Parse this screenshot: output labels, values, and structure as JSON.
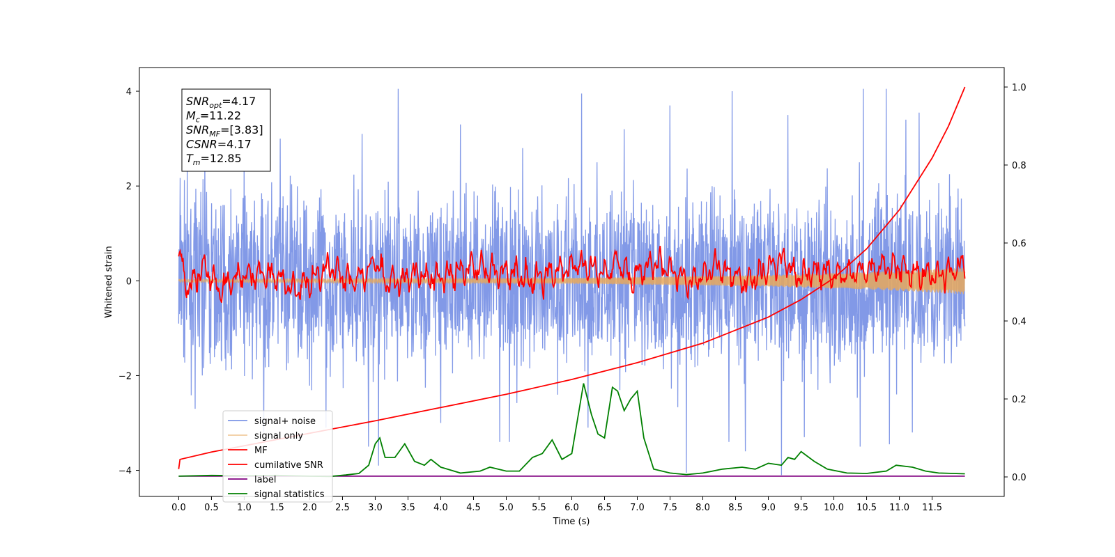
{
  "chart_data": {
    "type": "line",
    "title": "",
    "xlabel": "Time (s)",
    "ylabel": "Whitened strain",
    "xlim": [
      -0.6,
      12.6
    ],
    "ylim": [
      -4.55,
      4.5
    ],
    "y2lim": [
      -0.05,
      1.05
    ],
    "x_ticks": [
      0.0,
      0.5,
      1.0,
      1.5,
      2.0,
      2.5,
      3.0,
      3.5,
      4.0,
      4.5,
      5.0,
      5.5,
      6.0,
      6.5,
      7.0,
      7.5,
      8.0,
      8.5,
      9.0,
      9.5,
      10.0,
      10.5,
      11.0,
      11.5
    ],
    "x_tick_labels": [
      "0.0",
      "0.5",
      "1.0",
      "1.5",
      "2.0",
      "2.5",
      "3.0",
      "3.5",
      "4.0",
      "4.5",
      "5.0",
      "5.5",
      "6.0",
      "6.5",
      "7.0",
      "7.5",
      "8.0",
      "8.5",
      "9.0",
      "9.5",
      "10.0",
      "10.5",
      "11.0",
      "11.5"
    ],
    "y_ticks": [
      -4,
      -2,
      0,
      2,
      4
    ],
    "y_tick_labels": [
      "−4",
      "−2",
      "0",
      "2",
      "4"
    ],
    "y2_ticks": [
      0.0,
      0.2,
      0.4,
      0.6,
      0.8,
      1.0
    ],
    "y2_tick_labels": [
      "0.0",
      "0.2",
      "0.4",
      "0.6",
      "0.8",
      "1.0"
    ],
    "grid": false,
    "legend_position": "lower-left",
    "annotation": {
      "lines": [
        {
          "base": "SNR",
          "sub": "opt",
          "value": "=4.17"
        },
        {
          "base": "M",
          "sub": "c",
          "value": "=11.22"
        },
        {
          "base": "SNR",
          "sub": "MF",
          "value": "=[3.83]"
        },
        {
          "base": "CSNR",
          "sub": "",
          "value": "=4.17"
        },
        {
          "base": "T",
          "sub": "m",
          "value": "=12.85"
        }
      ]
    },
    "series": [
      {
        "name": "signal+ noise",
        "color": "#7b94e6",
        "axis": "left",
        "x_range": [
          0.0,
          12.0
        ],
        "envelope": {
          "typical_upper": 2.0,
          "typical_lower": -2.2,
          "max": 4.05,
          "min": -4.1
        },
        "peaks_upper": [
          [
            0.4,
            2.7
          ],
          [
            1.0,
            2.9
          ],
          [
            1.55,
            3.0
          ],
          [
            2.8,
            3.1
          ],
          [
            3.35,
            4.05
          ],
          [
            4.3,
            3.3
          ],
          [
            5.25,
            2.8
          ],
          [
            6.15,
            3.95
          ],
          [
            6.8,
            3.2
          ],
          [
            7.5,
            3.7
          ],
          [
            8.45,
            4.0
          ],
          [
            9.3,
            3.5
          ],
          [
            10.45,
            4.05
          ],
          [
            10.8,
            4.05
          ],
          [
            11.1,
            3.4
          ],
          [
            11.3,
            3.55
          ]
        ],
        "peaks_lower": [
          [
            0.25,
            -2.7
          ],
          [
            1.3,
            -3.2
          ],
          [
            2.25,
            -3.1
          ],
          [
            2.9,
            -3.5
          ],
          [
            3.05,
            -3.9
          ],
          [
            4.0,
            -3.0
          ],
          [
            4.9,
            -3.4
          ],
          [
            5.05,
            -3.4
          ],
          [
            6.25,
            -3.1
          ],
          [
            7.75,
            -4.05
          ],
          [
            8.4,
            -3.4
          ],
          [
            8.65,
            -3.6
          ],
          [
            9.2,
            -4.1
          ],
          [
            9.55,
            -3.3
          ],
          [
            10.4,
            -3.5
          ],
          [
            10.85,
            -3.45
          ],
          [
            11.2,
            -3.2
          ]
        ]
      },
      {
        "name": "signal only",
        "color": "#e8a85c",
        "axis": "left",
        "x_range": [
          0.0,
          12.0
        ],
        "amplitude": [
          [
            0.0,
            0.03
          ],
          [
            6.0,
            0.06
          ],
          [
            9.0,
            0.12
          ],
          [
            10.5,
            0.18
          ],
          [
            12.0,
            0.28
          ]
        ]
      },
      {
        "name": "MF",
        "color": "#ff0000",
        "axis": "left",
        "x_range": [
          0.0,
          12.0
        ],
        "points": [
          [
            0.0,
            0.8
          ],
          [
            0.02,
            1.0
          ],
          [
            0.08,
            0.4
          ],
          [
            0.15,
            -0.3
          ],
          [
            0.25,
            0.2
          ],
          [
            0.4,
            0.6
          ],
          [
            0.6,
            -0.2
          ],
          [
            1.0,
            0.3
          ],
          [
            1.4,
            0.4
          ],
          [
            1.8,
            -0.3
          ],
          [
            2.3,
            0.6
          ],
          [
            2.6,
            0.1
          ],
          [
            2.8,
            0.2
          ],
          [
            3.0,
            0.8
          ],
          [
            3.2,
            0.0
          ],
          [
            3.6,
            0.3
          ],
          [
            4.0,
            0.2
          ],
          [
            4.5,
            0.6
          ],
          [
            5.0,
            0.4
          ],
          [
            5.4,
            0.1
          ],
          [
            5.8,
            0.5
          ],
          [
            6.2,
            0.7
          ],
          [
            6.5,
            0.4
          ],
          [
            6.7,
            0.9
          ],
          [
            6.9,
            0.2
          ],
          [
            7.3,
            0.8
          ],
          [
            7.8,
            0.0
          ],
          [
            8.2,
            0.7
          ],
          [
            8.7,
            0.0
          ],
          [
            9.0,
            0.6
          ],
          [
            9.25,
            0.9
          ],
          [
            9.4,
            0.3
          ],
          [
            9.8,
            0.4
          ],
          [
            10.2,
            0.3
          ],
          [
            10.8,
            0.7
          ],
          [
            11.2,
            0.4
          ],
          [
            11.5,
            0.3
          ],
          [
            11.8,
            0.4
          ],
          [
            12.0,
            0.8
          ]
        ]
      },
      {
        "name": "cumilative SNR",
        "color": "#ff0000",
        "axis": "right",
        "points": [
          [
            0.0,
            0.02
          ],
          [
            0.02,
            0.045
          ],
          [
            0.5,
            0.064
          ],
          [
            1.0,
            0.08
          ],
          [
            2.0,
            0.112
          ],
          [
            3.0,
            0.144
          ],
          [
            4.0,
            0.178
          ],
          [
            5.0,
            0.212
          ],
          [
            6.0,
            0.25
          ],
          [
            7.0,
            0.293
          ],
          [
            8.0,
            0.343
          ],
          [
            9.0,
            0.41
          ],
          [
            9.5,
            0.455
          ],
          [
            10.0,
            0.51
          ],
          [
            10.5,
            0.585
          ],
          [
            11.0,
            0.685
          ],
          [
            11.5,
            0.818
          ],
          [
            11.75,
            0.9
          ],
          [
            12.0,
            1.0
          ]
        ]
      },
      {
        "name": "label",
        "color": "#800080",
        "axis": "right",
        "points": [
          [
            0.0,
            0.002
          ],
          [
            12.0,
            0.002
          ]
        ]
      },
      {
        "name": "signal statistics",
        "color": "#008000",
        "axis": "right",
        "points": [
          [
            0.0,
            0.002
          ],
          [
            0.5,
            0.004
          ],
          [
            1.0,
            0.003
          ],
          [
            1.5,
            0.004
          ],
          [
            2.0,
            0.002
          ],
          [
            2.3,
            0.001
          ],
          [
            2.55,
            0.005
          ],
          [
            2.75,
            0.009
          ],
          [
            2.9,
            0.03
          ],
          [
            3.0,
            0.085
          ],
          [
            3.07,
            0.1
          ],
          [
            3.15,
            0.05
          ],
          [
            3.3,
            0.05
          ],
          [
            3.45,
            0.085
          ],
          [
            3.6,
            0.04
          ],
          [
            3.75,
            0.03
          ],
          [
            3.85,
            0.045
          ],
          [
            4.0,
            0.025
          ],
          [
            4.3,
            0.01
          ],
          [
            4.6,
            0.015
          ],
          [
            4.75,
            0.025
          ],
          [
            5.0,
            0.015
          ],
          [
            5.2,
            0.015
          ],
          [
            5.4,
            0.05
          ],
          [
            5.55,
            0.06
          ],
          [
            5.7,
            0.095
          ],
          [
            5.85,
            0.045
          ],
          [
            6.0,
            0.06
          ],
          [
            6.1,
            0.16
          ],
          [
            6.18,
            0.24
          ],
          [
            6.3,
            0.16
          ],
          [
            6.4,
            0.11
          ],
          [
            6.5,
            0.1
          ],
          [
            6.62,
            0.23
          ],
          [
            6.7,
            0.22
          ],
          [
            6.8,
            0.17
          ],
          [
            6.9,
            0.2
          ],
          [
            7.0,
            0.22
          ],
          [
            7.1,
            0.1
          ],
          [
            7.25,
            0.02
          ],
          [
            7.5,
            0.01
          ],
          [
            7.75,
            0.006
          ],
          [
            8.0,
            0.01
          ],
          [
            8.3,
            0.02
          ],
          [
            8.6,
            0.025
          ],
          [
            8.8,
            0.02
          ],
          [
            9.0,
            0.035
          ],
          [
            9.2,
            0.03
          ],
          [
            9.3,
            0.05
          ],
          [
            9.4,
            0.045
          ],
          [
            9.5,
            0.065
          ],
          [
            9.7,
            0.04
          ],
          [
            9.9,
            0.02
          ],
          [
            10.2,
            0.01
          ],
          [
            10.5,
            0.009
          ],
          [
            10.8,
            0.015
          ],
          [
            10.95,
            0.03
          ],
          [
            11.2,
            0.025
          ],
          [
            11.4,
            0.015
          ],
          [
            11.6,
            0.01
          ],
          [
            12.0,
            0.008
          ]
        ]
      }
    ]
  }
}
